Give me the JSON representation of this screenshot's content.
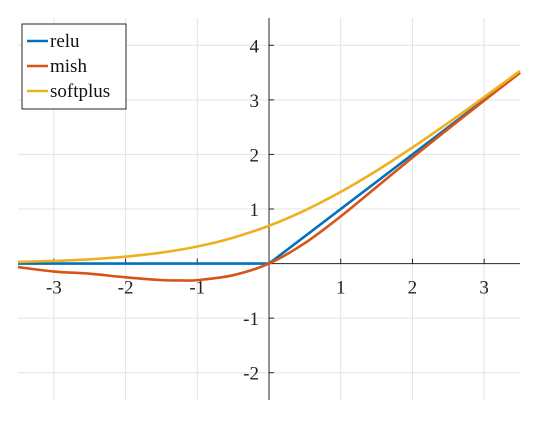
{
  "chart_data": {
    "type": "line",
    "title": "",
    "xlabel": "",
    "ylabel": "",
    "xlim": [
      -3.5,
      3.5
    ],
    "ylim": [
      -2.5,
      4.5
    ],
    "grid": true,
    "axes_through_origin": true,
    "legend_position": "top-left",
    "x_ticks": [
      -3,
      -2,
      -1,
      1,
      2,
      3
    ],
    "x_tick_labels": [
      "-3",
      "-2",
      "-1",
      "1",
      "2",
      "3"
    ],
    "y_ticks": [
      -2,
      -1,
      1,
      2,
      3,
      4
    ],
    "y_tick_labels": [
      "-2",
      "-1",
      "1",
      "2",
      "3",
      "4"
    ],
    "series": [
      {
        "name": "relu",
        "color": "#0072BD",
        "x": [
          -3.5,
          0,
          3.5
        ],
        "y": [
          0,
          0,
          3.5
        ]
      },
      {
        "name": "mish",
        "color": "#D95319",
        "x": [
          -3.5,
          -3.0,
          -2.5,
          -2.0,
          -1.5,
          -1.2,
          -1.0,
          -0.5,
          0,
          0.5,
          1.0,
          1.5,
          2.0,
          2.5,
          3.0,
          3.5
        ],
        "y": [
          -0.0639,
          -0.1456,
          -0.1853,
          -0.2525,
          -0.3034,
          -0.3088,
          -0.3034,
          -0.2129,
          0,
          0.3751,
          0.8651,
          1.4033,
          1.944,
          2.4692,
          2.9865,
          3.4953
        ]
      },
      {
        "name": "softplus",
        "color": "#EDB120",
        "x": [
          -3.5,
          -3.0,
          -2.5,
          -2.0,
          -1.5,
          -1.0,
          -0.5,
          0,
          0.5,
          1.0,
          1.5,
          2.0,
          2.5,
          3.0,
          3.5
        ],
        "y": [
          0.0298,
          0.0486,
          0.0789,
          0.1269,
          0.2014,
          0.3133,
          0.4741,
          0.6931,
          0.9741,
          1.3133,
          1.7014,
          2.1269,
          2.5789,
          3.0486,
          3.5298
        ]
      }
    ]
  }
}
